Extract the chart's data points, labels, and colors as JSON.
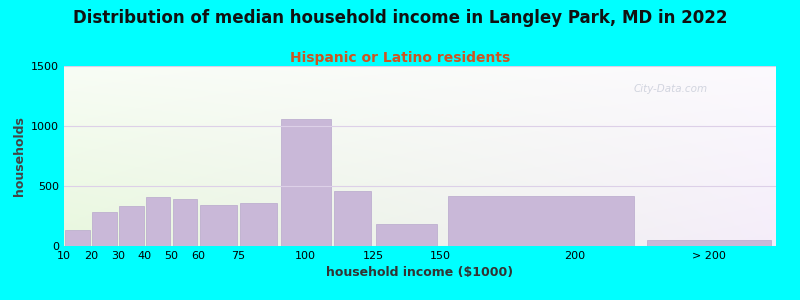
{
  "title": "Distribution of median household income in Langley Park, MD in 2022",
  "subtitle": "Hispanic or Latino residents",
  "xlabel": "household income ($1000)",
  "ylabel": "households",
  "background_color": "#00FFFF",
  "bar_color": "#c9b8d8",
  "bar_edge_color": "#b8a8cc",
  "grid_color": "#ddd0e8",
  "title_fontsize": 12,
  "subtitle_fontsize": 10,
  "subtitle_color": "#cc5522",
  "axis_label_fontsize": 9,
  "tick_fontsize": 8,
  "bin_lefts": [
    10,
    20,
    30,
    40,
    50,
    60,
    75,
    90,
    110,
    125,
    150,
    225
  ],
  "bin_widths": [
    10,
    10,
    10,
    10,
    10,
    15,
    15,
    20,
    15,
    25,
    75,
    50
  ],
  "bar_heights": [
    130,
    280,
    330,
    410,
    390,
    340,
    360,
    1060,
    460,
    185,
    415,
    50
  ],
  "xtick_positions": [
    10,
    20,
    30,
    40,
    50,
    60,
    75,
    100,
    125,
    150,
    200,
    250
  ],
  "xtick_labels": [
    "10",
    "20",
    "30",
    "40",
    "50",
    "60",
    "75",
    "100",
    "125",
    "150",
    "200",
    "> 200"
  ],
  "ylim": [
    0,
    1500
  ],
  "yticks": [
    0,
    500,
    1000,
    1500
  ],
  "xlim": [
    10,
    275
  ],
  "watermark": "City-Data.com"
}
